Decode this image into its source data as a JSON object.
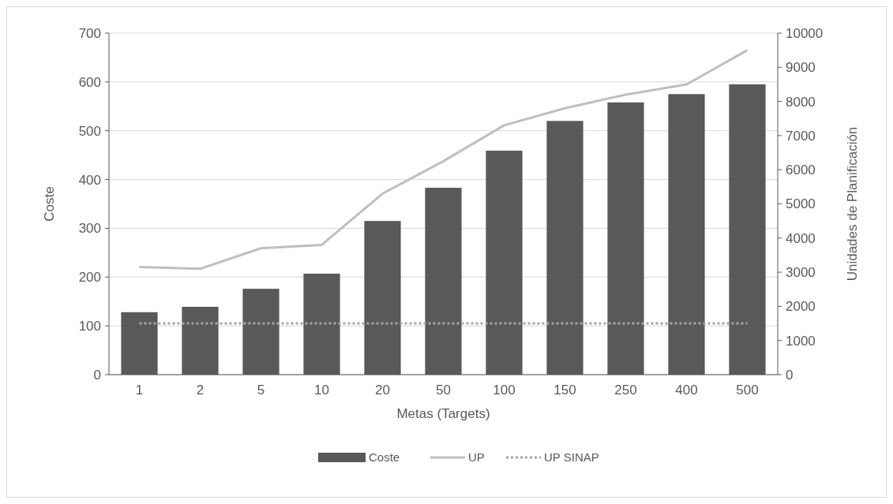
{
  "chart_data": {
    "type": "bar",
    "xlabel": "Metas (Targets)",
    "ylabel": "Coste",
    "y2label": "Unidades de Planificación",
    "categories": [
      "1",
      "2",
      "5",
      "10",
      "20",
      "50",
      "100",
      "150",
      "250",
      "400",
      "500"
    ],
    "series": [
      {
        "name": "Coste",
        "color": "#595959",
        "values": [
          128,
          139,
          176,
          207,
          315,
          383,
          459,
          520,
          558,
          575,
          595
        ]
      },
      {
        "name": "UP",
        "type": "line",
        "axis": "y2",
        "color": "#bfbfbf",
        "line_style": "solid",
        "values": [
          3150,
          3100,
          3700,
          3800,
          5300,
          6250,
          7300,
          7800,
          8200,
          8500,
          9500
        ]
      },
      {
        "name": "UP SINAP",
        "type": "line",
        "axis": "y2",
        "color": "#a6a6a6",
        "line_style": "dotted",
        "values": [
          1500,
          1500,
          1500,
          1500,
          1500,
          1500,
          1500,
          1500,
          1500,
          1500,
          1500
        ]
      }
    ],
    "ylim": [
      0,
      700
    ],
    "yticks": [
      0,
      100,
      200,
      300,
      400,
      500,
      600,
      700
    ],
    "y2lim": [
      0,
      10000
    ],
    "y2ticks": [
      0,
      1000,
      2000,
      3000,
      4000,
      5000,
      6000,
      7000,
      8000,
      9000,
      10000
    ],
    "grid": "y",
    "legend": "bottom"
  }
}
